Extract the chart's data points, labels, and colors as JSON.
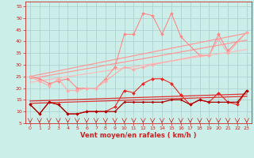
{
  "xlabel": "Vent moyen/en rafales ( km/h )",
  "bg_color": "#cceee8",
  "grid_color": "#aacccc",
  "xlim": [
    -0.5,
    23.5
  ],
  "ylim": [
    5,
    57
  ],
  "yticks": [
    5,
    10,
    15,
    20,
    25,
    30,
    35,
    40,
    45,
    50,
    55
  ],
  "xticks": [
    0,
    1,
    2,
    3,
    4,
    5,
    6,
    7,
    8,
    9,
    10,
    11,
    12,
    13,
    14,
    15,
    16,
    17,
    18,
    19,
    20,
    21,
    22,
    23
  ],
  "series": [
    {
      "name": "trend_upper1",
      "x": [
        0,
        23
      ],
      "y": [
        25.0,
        43.5
      ],
      "color": "#ff9999",
      "lw": 0.9,
      "marker": null,
      "zorder": 2
    },
    {
      "name": "trend_upper2",
      "x": [
        0,
        23
      ],
      "y": [
        24.0,
        40.5
      ],
      "color": "#ff9999",
      "lw": 0.9,
      "marker": null,
      "zorder": 2
    },
    {
      "name": "trend_mid",
      "x": [
        0,
        23
      ],
      "y": [
        22.5,
        36.5
      ],
      "color": "#ffbbbb",
      "lw": 0.9,
      "marker": null,
      "zorder": 2
    },
    {
      "name": "trend_low1",
      "x": [
        0,
        23
      ],
      "y": [
        14.5,
        17.5
      ],
      "color": "#dd3333",
      "lw": 0.9,
      "marker": null,
      "zorder": 2
    },
    {
      "name": "trend_low2",
      "x": [
        0,
        23
      ],
      "y": [
        13.5,
        16.5
      ],
      "color": "#dd3333",
      "lw": 0.9,
      "marker": null,
      "zorder": 2
    },
    {
      "name": "data_pink_upper",
      "x": [
        0,
        1,
        2,
        3,
        4,
        5,
        6,
        7,
        8,
        9,
        10,
        11,
        12,
        13,
        14,
        15,
        16,
        18,
        19,
        20,
        21,
        23
      ],
      "y": [
        25,
        24,
        22,
        23,
        24,
        20,
        20,
        20,
        24,
        29,
        43,
        43,
        52,
        51,
        43,
        52,
        42,
        34,
        34,
        43,
        36,
        44
      ],
      "color": "#ff8888",
      "lw": 0.8,
      "marker": "D",
      "ms": 2.0,
      "zorder": 3
    },
    {
      "name": "data_pink_lower",
      "x": [
        0,
        1,
        2,
        3,
        4,
        5,
        6,
        7,
        8,
        10,
        11,
        12,
        13,
        18,
        19,
        20,
        21,
        23
      ],
      "y": [
        25,
        23,
        21,
        24,
        19,
        19,
        20,
        20,
        23,
        29,
        28,
        29,
        30,
        34,
        34,
        41,
        35,
        44
      ],
      "color": "#ffaaaa",
      "lw": 0.8,
      "marker": "D",
      "ms": 2.0,
      "zorder": 3
    },
    {
      "name": "data_red_upper",
      "x": [
        0,
        1,
        2,
        3,
        4,
        5,
        6,
        7,
        8,
        9,
        10,
        11,
        12,
        13,
        14,
        15,
        16,
        17,
        18,
        19,
        20,
        21,
        22,
        23
      ],
      "y": [
        13,
        9,
        14,
        13,
        9,
        9,
        10,
        10,
        10,
        12,
        19,
        18,
        22,
        24,
        24,
        22,
        17,
        13,
        15,
        14,
        18,
        14,
        13,
        19
      ],
      "color": "#ee2222",
      "lw": 0.8,
      "marker": "D",
      "ms": 2.0,
      "zorder": 4
    },
    {
      "name": "data_red_flat",
      "x": [
        0,
        1,
        2,
        3,
        4,
        5,
        6,
        7,
        8,
        9,
        10,
        11,
        12,
        13,
        14,
        15,
        16,
        17,
        18,
        19,
        20,
        21,
        22,
        23
      ],
      "y": [
        13,
        9,
        14,
        13,
        9,
        9,
        10,
        10,
        10,
        10,
        14,
        14,
        14,
        14,
        14,
        15,
        15,
        13,
        15,
        14,
        14,
        14,
        14,
        19
      ],
      "color": "#aa0000",
      "lw": 0.9,
      "marker": "D",
      "ms": 1.5,
      "zorder": 4
    }
  ]
}
